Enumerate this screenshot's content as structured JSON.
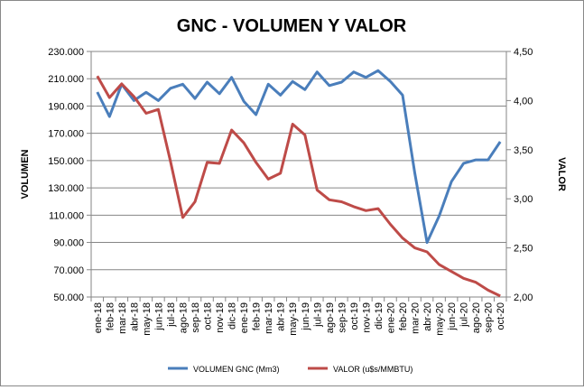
{
  "chart_data": {
    "type": "line",
    "title": "GNC - VOLUMEN Y VALOR",
    "ylabel": "VOLUMEN",
    "y2label": "VALOR",
    "ylim": [
      50000,
      230000
    ],
    "y2lim": [
      2.0,
      4.5
    ],
    "yticks": [
      "50.000",
      "70.000",
      "90.000",
      "110.000",
      "130.000",
      "150.000",
      "170.000",
      "190.000",
      "210.000",
      "230.000"
    ],
    "y2ticks": [
      "2,00",
      "2,50",
      "3,00",
      "3,50",
      "4,00",
      "4,50"
    ],
    "grid": true,
    "legend_position": "bottom",
    "categories": [
      "ene-18",
      "feb-18",
      "mar-18",
      "abr-18",
      "may-18",
      "jun-18",
      "jul-18",
      "ago-18",
      "sep-18",
      "oct-18",
      "nov-18",
      "dic-18",
      "ene-19",
      "feb-19",
      "mar-19",
      "abr-19",
      "may-19",
      "jun-19",
      "jul-19",
      "ago-19",
      "sep-19",
      "oct-19",
      "nov-19",
      "dic-19",
      "ene-20",
      "feb-20",
      "mar-20",
      "abr-20",
      "may-20",
      "jun-20",
      "jul-20",
      "ago-20",
      "sep-20",
      "oct-20"
    ],
    "series": [
      {
        "name": "VOLUMEN GNC (Mm3)",
        "axis": "left",
        "color": "#4a7ebb",
        "values": [
          200200,
          182300,
          206000,
          194000,
          200000,
          194000,
          203000,
          206000,
          195500,
          207500,
          199000,
          211000,
          193500,
          183700,
          206000,
          198000,
          208000,
          202000,
          215000,
          205000,
          207500,
          215000,
          211000,
          216000,
          208000,
          198000,
          141000,
          90000,
          109500,
          134600,
          148000,
          150500,
          150500,
          163800
        ]
      },
      {
        "name": "VALOR (u$s/MMBTU)",
        "axis": "right",
        "color": "#be4b48",
        "values": [
          4.25,
          4.03,
          4.17,
          4.04,
          3.87,
          3.91,
          3.38,
          2.81,
          2.97,
          3.37,
          3.36,
          3.7,
          3.57,
          3.37,
          3.2,
          3.26,
          3.76,
          3.65,
          3.09,
          2.99,
          2.97,
          2.92,
          2.88,
          2.9,
          2.74,
          2.6,
          2.5,
          2.46,
          2.33,
          2.26,
          2.19,
          2.15,
          2.07,
          2.01
        ]
      }
    ]
  }
}
